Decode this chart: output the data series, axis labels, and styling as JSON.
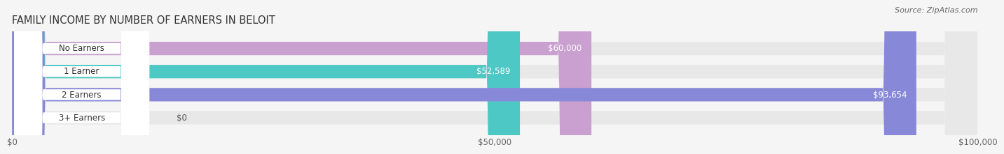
{
  "title": "FAMILY INCOME BY NUMBER OF EARNERS IN BELOIT",
  "source": "Source: ZipAtlas.com",
  "categories": [
    "No Earners",
    "1 Earner",
    "2 Earners",
    "3+ Earners"
  ],
  "values": [
    60000,
    52589,
    93654,
    0
  ],
  "labels": [
    "$60,000",
    "$52,589",
    "$93,654",
    "$0"
  ],
  "bar_colors": [
    "#c9a0d0",
    "#4ec8c4",
    "#8888d8",
    "#f0a0b8"
  ],
  "bar_bg_color": "#e8e8e8",
  "x_max": 100000,
  "x_ticks": [
    0,
    50000,
    100000
  ],
  "x_tick_labels": [
    "$0",
    "$50,000",
    "$100,000"
  ],
  "background_color": "#f5f5f5",
  "title_fontsize": 10.5,
  "source_fontsize": 8,
  "bar_height": 0.58,
  "fig_width": 14.06,
  "fig_height": 2.33
}
